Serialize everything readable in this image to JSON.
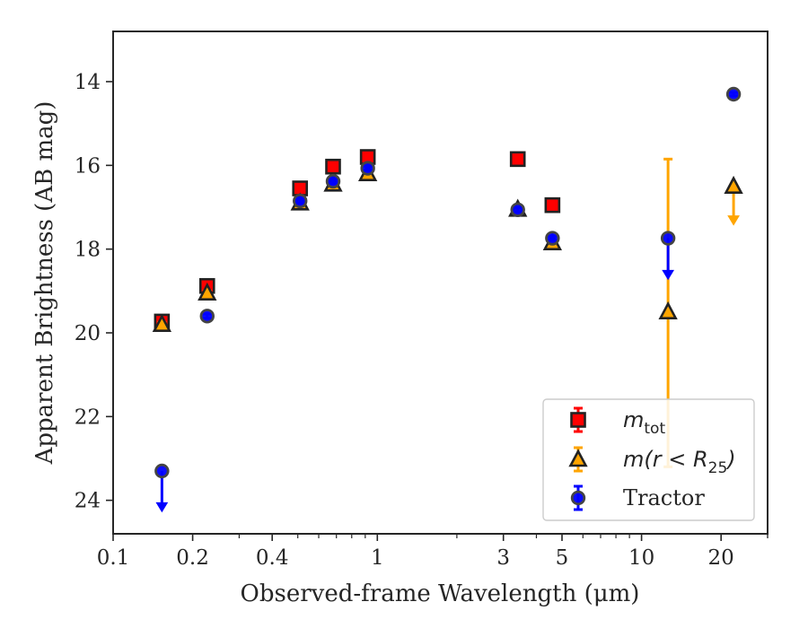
{
  "chart_data": {
    "type": "scatter",
    "xlabel": "Observed-frame Wavelength (μm)",
    "ylabel": "Apparent Brightness (AB mag)",
    "xscale": "log",
    "xlim": [
      0.1,
      30
    ],
    "ylim": [
      24.8,
      12.8
    ],
    "y_inverted": true,
    "x_ticks": [
      {
        "value": 0.1,
        "label": "0.1"
      },
      {
        "value": 0.2,
        "label": "0.2"
      },
      {
        "value": 0.4,
        "label": "0.4"
      },
      {
        "value": 1,
        "label": "1"
      },
      {
        "value": 3,
        "label": "3"
      },
      {
        "value": 5,
        "label": "5"
      },
      {
        "value": 10,
        "label": "10"
      },
      {
        "value": 20,
        "label": "20"
      }
    ],
    "y_ticks": [
      {
        "value": 14,
        "label": "14"
      },
      {
        "value": 16,
        "label": "16"
      },
      {
        "value": 18,
        "label": "18"
      },
      {
        "value": 20,
        "label": "20"
      },
      {
        "value": 22,
        "label": "22"
      },
      {
        "value": 24,
        "label": "24"
      }
    ],
    "grid": false,
    "legend": {
      "position": "lower-right",
      "entries": [
        {
          "series": "m_tot",
          "label_main": "m",
          "label_sub": "tot",
          "label_tail": ""
        },
        {
          "series": "m_r25",
          "label_main": "m(r < R",
          "label_sub": "25",
          "label_tail": ")"
        },
        {
          "series": "tractor",
          "label_main": "Tractor",
          "label_sub": "",
          "label_tail": ""
        }
      ]
    },
    "series": [
      {
        "id": "m_tot",
        "marker": "square",
        "color": "#ff0000",
        "edge_color": "#222222",
        "points": [
          {
            "x": 0.153,
            "y": 19.73,
            "err": 0.05
          },
          {
            "x": 0.227,
            "y": 18.88,
            "err": 0.05
          },
          {
            "x": 0.51,
            "y": 16.55,
            "err": 0.04
          },
          {
            "x": 0.68,
            "y": 16.03,
            "err": 0.04
          },
          {
            "x": 0.92,
            "y": 15.8,
            "err": 0.04
          },
          {
            "x": 3.4,
            "y": 15.85,
            "err": 0.04
          },
          {
            "x": 4.6,
            "y": 16.95,
            "err": 0.04
          }
        ]
      },
      {
        "id": "m_r25",
        "marker": "triangle",
        "color": "#ffa500",
        "edge_color": "#222222",
        "points": [
          {
            "x": 0.153,
            "y": 19.8,
            "err": 0.05
          },
          {
            "x": 0.227,
            "y": 19.05,
            "err": 0.05
          },
          {
            "x": 0.51,
            "y": 16.9,
            "err": 0.04
          },
          {
            "x": 0.68,
            "y": 16.45,
            "err": 0.04
          },
          {
            "x": 0.92,
            "y": 16.2,
            "err": 0.04
          },
          {
            "x": 3.4,
            "y": 17.05,
            "err": 0.04
          },
          {
            "x": 4.6,
            "y": 17.85,
            "err": 0.04
          },
          {
            "x": 12.6,
            "y": 19.5,
            "err_low": 3.65,
            "err_high": 3.7
          },
          {
            "x": 22.3,
            "y": 16.5,
            "upper_limit": true,
            "arrow_to": 17.4
          }
        ]
      },
      {
        "id": "tractor",
        "marker": "circle",
        "color": "#0000ff",
        "edge_color": "#444444",
        "points": [
          {
            "x": 0.153,
            "y": 23.3,
            "upper_limit": true,
            "arrow_to": 24.25
          },
          {
            "x": 0.227,
            "y": 19.6,
            "err": 0.05
          },
          {
            "x": 0.51,
            "y": 16.85,
            "err": 0.05
          },
          {
            "x": 0.68,
            "y": 16.38,
            "err": 0.05
          },
          {
            "x": 0.92,
            "y": 16.07,
            "err": 0.05
          },
          {
            "x": 3.4,
            "y": 17.06,
            "err": 0.05
          },
          {
            "x": 4.6,
            "y": 17.74,
            "err": 0.05
          },
          {
            "x": 12.6,
            "y": 17.74,
            "upper_limit": true,
            "arrow_to": 18.7
          },
          {
            "x": 22.3,
            "y": 14.3,
            "err": 0.04
          }
        ]
      }
    ]
  }
}
